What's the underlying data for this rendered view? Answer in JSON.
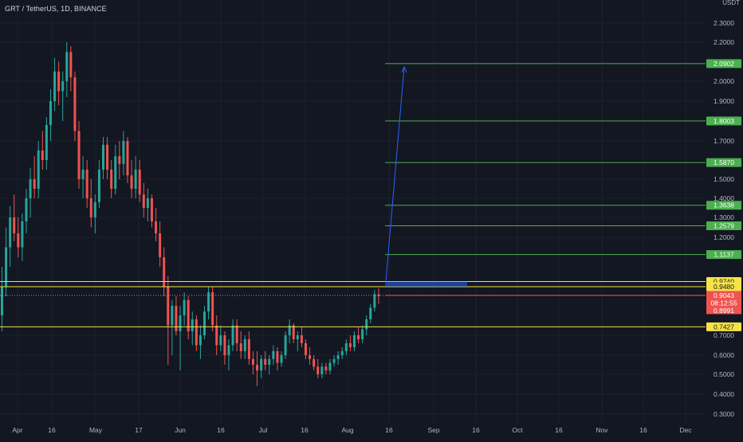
{
  "symbol_title": "GRT / TetherUS, 1D, BINANCE",
  "currency": "USDT",
  "colors": {
    "background": "#131722",
    "grid": "#1e222d",
    "up": "#26a69a",
    "down": "#ef5350",
    "target": "#4caf50",
    "level": "#f7e247",
    "arrow": "#2962ff",
    "current_price": "#ef5350"
  },
  "chart_data": {
    "type": "candlestick",
    "title": "GRT / TetherUS, 1D, BINANCE",
    "ylim": [
      0.3,
      2.4
    ],
    "y_ticks": [
      "0.3000",
      "0.4000",
      "0.5000",
      "0.6000",
      "0.7000",
      "1.2000",
      "1.3000",
      "1.4000",
      "1.5000",
      "1.7000",
      "1.9000",
      "2.0000",
      "2.2000",
      "2.3000"
    ],
    "x_ticks": [
      "Apr",
      "16",
      "May",
      "17",
      "Jun",
      "16",
      "Jul",
      "16",
      "Aug",
      "16",
      "Sep",
      "16",
      "Oct",
      "16",
      "Nov",
      "16",
      "Dec"
    ],
    "grid": true,
    "candles": [
      [
        0.8,
        1.05,
        0.72,
        0.95
      ],
      [
        0.95,
        1.25,
        0.9,
        1.15
      ],
      [
        1.15,
        1.36,
        1.05,
        1.3
      ],
      [
        1.3,
        1.42,
        1.18,
        1.22
      ],
      [
        1.22,
        1.3,
        1.1,
        1.15
      ],
      [
        1.15,
        1.32,
        1.08,
        1.28
      ],
      [
        1.28,
        1.45,
        1.22,
        1.4
      ],
      [
        1.4,
        1.56,
        1.3,
        1.5
      ],
      [
        1.5,
        1.62,
        1.4,
        1.45
      ],
      [
        1.45,
        1.7,
        1.4,
        1.65
      ],
      [
        1.65,
        1.75,
        1.55,
        1.6
      ],
      [
        1.6,
        1.82,
        1.55,
        1.78
      ],
      [
        1.78,
        1.96,
        1.7,
        1.9
      ],
      [
        1.9,
        2.12,
        1.85,
        2.05
      ],
      [
        2.05,
        2.1,
        1.88,
        1.95
      ],
      [
        1.95,
        2.05,
        1.8,
        2.0
      ],
      [
        2.0,
        2.2,
        1.92,
        2.15
      ],
      [
        2.15,
        2.18,
        1.95,
        2.02
      ],
      [
        2.02,
        2.05,
        1.7,
        1.75
      ],
      [
        1.75,
        1.8,
        1.45,
        1.5
      ],
      [
        1.5,
        1.62,
        1.4,
        1.55
      ],
      [
        1.55,
        1.6,
        1.35,
        1.4
      ],
      [
        1.4,
        1.5,
        1.25,
        1.3
      ],
      [
        1.3,
        1.42,
        1.22,
        1.38
      ],
      [
        1.38,
        1.6,
        1.35,
        1.55
      ],
      [
        1.55,
        1.72,
        1.5,
        1.68
      ],
      [
        1.68,
        1.72,
        1.5,
        1.55
      ],
      [
        1.55,
        1.6,
        1.4,
        1.45
      ],
      [
        1.45,
        1.68,
        1.42,
        1.62
      ],
      [
        1.62,
        1.7,
        1.5,
        1.58
      ],
      [
        1.58,
        1.75,
        1.52,
        1.7
      ],
      [
        1.7,
        1.72,
        1.48,
        1.52
      ],
      [
        1.52,
        1.6,
        1.4,
        1.45
      ],
      [
        1.45,
        1.62,
        1.4,
        1.55
      ],
      [
        1.55,
        1.6,
        1.38,
        1.42
      ],
      [
        1.42,
        1.48,
        1.3,
        1.35
      ],
      [
        1.35,
        1.45,
        1.28,
        1.4
      ],
      [
        1.4,
        1.42,
        1.25,
        1.28
      ],
      [
        1.28,
        1.35,
        1.18,
        1.22
      ],
      [
        1.22,
        1.28,
        1.05,
        1.1
      ],
      [
        1.1,
        1.15,
        0.9,
        0.95
      ],
      [
        0.95,
        1.0,
        0.55,
        0.75
      ],
      [
        0.75,
        0.88,
        0.6,
        0.85
      ],
      [
        0.85,
        0.9,
        0.7,
        0.72
      ],
      [
        0.72,
        0.85,
        0.52,
        0.8
      ],
      [
        0.8,
        0.92,
        0.75,
        0.88
      ],
      [
        0.88,
        0.9,
        0.68,
        0.72
      ],
      [
        0.72,
        0.82,
        0.65,
        0.78
      ],
      [
        0.78,
        0.8,
        0.62,
        0.65
      ],
      [
        0.65,
        0.75,
        0.58,
        0.7
      ],
      [
        0.7,
        0.85,
        0.68,
        0.82
      ],
      [
        0.82,
        0.95,
        0.78,
        0.92
      ],
      [
        0.92,
        0.95,
        0.72,
        0.75
      ],
      [
        0.75,
        0.8,
        0.6,
        0.65
      ],
      [
        0.65,
        0.75,
        0.62,
        0.7
      ],
      [
        0.7,
        0.72,
        0.55,
        0.6
      ],
      [
        0.6,
        0.68,
        0.52,
        0.65
      ],
      [
        0.65,
        0.78,
        0.62,
        0.75
      ],
      [
        0.75,
        0.78,
        0.62,
        0.66
      ],
      [
        0.66,
        0.72,
        0.58,
        0.62
      ],
      [
        0.62,
        0.7,
        0.58,
        0.68
      ],
      [
        0.68,
        0.72,
        0.55,
        0.58
      ],
      [
        0.58,
        0.62,
        0.5,
        0.55
      ],
      [
        0.55,
        0.62,
        0.44,
        0.52
      ],
      [
        0.52,
        0.6,
        0.48,
        0.58
      ],
      [
        0.58,
        0.62,
        0.52,
        0.55
      ],
      [
        0.55,
        0.6,
        0.5,
        0.58
      ],
      [
        0.58,
        0.65,
        0.55,
        0.62
      ],
      [
        0.62,
        0.64,
        0.52,
        0.56
      ],
      [
        0.56,
        0.62,
        0.54,
        0.6
      ],
      [
        0.6,
        0.72,
        0.58,
        0.7
      ],
      [
        0.7,
        0.78,
        0.66,
        0.75
      ],
      [
        0.75,
        0.76,
        0.66,
        0.68
      ],
      [
        0.68,
        0.72,
        0.62,
        0.7
      ],
      [
        0.7,
        0.74,
        0.64,
        0.66
      ],
      [
        0.66,
        0.68,
        0.58,
        0.6
      ],
      [
        0.6,
        0.64,
        0.55,
        0.58
      ],
      [
        0.58,
        0.6,
        0.52,
        0.54
      ],
      [
        0.54,
        0.58,
        0.48,
        0.5
      ],
      [
        0.5,
        0.56,
        0.48,
        0.54
      ],
      [
        0.54,
        0.56,
        0.5,
        0.52
      ],
      [
        0.52,
        0.58,
        0.5,
        0.56
      ],
      [
        0.56,
        0.6,
        0.54,
        0.58
      ],
      [
        0.58,
        0.62,
        0.55,
        0.6
      ],
      [
        0.6,
        0.64,
        0.58,
        0.62
      ],
      [
        0.62,
        0.68,
        0.6,
        0.66
      ],
      [
        0.66,
        0.7,
        0.62,
        0.64
      ],
      [
        0.64,
        0.72,
        0.62,
        0.7
      ],
      [
        0.7,
        0.74,
        0.66,
        0.68
      ],
      [
        0.68,
        0.75,
        0.66,
        0.73
      ],
      [
        0.73,
        0.8,
        0.7,
        0.78
      ],
      [
        0.78,
        0.86,
        0.76,
        0.84
      ],
      [
        0.84,
        0.93,
        0.82,
        0.91
      ],
      [
        0.91,
        0.94,
        0.86,
        0.9
      ]
    ],
    "levels_target": [
      1.1137,
      1.2579,
      1.3638,
      1.587,
      1.8003,
      2.0902
    ],
    "levels_support": [
      0.974,
      0.948,
      0.7427
    ],
    "current_price": 0.9043,
    "current_price_prev": 0.8991,
    "countdown": "08:12:55"
  },
  "price_labels": {
    "target": [
      "1.1137",
      "1.2579",
      "1.3638",
      "1.5870",
      "1.8003",
      "2.0902"
    ],
    "support": [
      "0.9740",
      "0.9480",
      "0.7427"
    ],
    "current": "0.9043",
    "countdown": "08:12:55",
    "prev": "0.8991"
  }
}
